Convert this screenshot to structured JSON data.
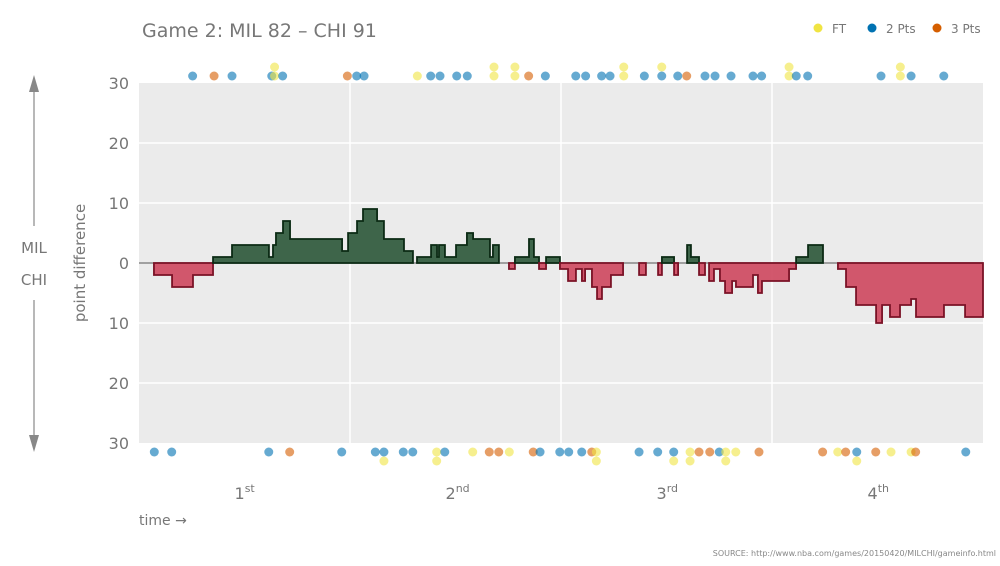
{
  "chart_data": {
    "type": "area",
    "title": "Game 2: MIL 82  –  CHI 91",
    "ylabel": "point difference",
    "xlabel": "time →",
    "team_up": "MIL",
    "team_down": "CHI",
    "source": "SOURCE: http://www.nba.com/games/20150420/MILCHI/gameinfo.html",
    "ylim": [
      -30,
      30
    ],
    "xlim_minutes": [
      0,
      48
    ],
    "y_ticks": [
      {
        "v": 30,
        "label": "30"
      },
      {
        "v": 20,
        "label": "20"
      },
      {
        "v": 10,
        "label": "10"
      },
      {
        "v": 0,
        "label": "0"
      },
      {
        "v": -10,
        "label": "10"
      },
      {
        "v": -20,
        "label": "20"
      },
      {
        "v": -30,
        "label": "30"
      }
    ],
    "quarters": [
      {
        "num": "1",
        "sup": "st"
      },
      {
        "num": "2",
        "sup": "nd"
      },
      {
        "num": "3",
        "sup": "rd"
      },
      {
        "num": "4",
        "sup": "th"
      }
    ],
    "legend": [
      {
        "label": "FT",
        "type": "FT",
        "color": "#f0e442"
      },
      {
        "label": "2 Pts",
        "type": "2",
        "color": "#0072b2"
      },
      {
        "label": "3 Pts",
        "type": "3",
        "color": "#d55e00"
      }
    ],
    "colors": {
      "lead_fill": "#3a6246",
      "lead_stroke": "#0b2a14",
      "trail_fill": "#d04f65",
      "trail_stroke": "#7a1226",
      "panel": "#ebebeb"
    },
    "margin_steps": [
      [
        0,
        0
      ],
      [
        0.85,
        -2
      ],
      [
        1.88,
        -4
      ],
      [
        3.07,
        -2
      ],
      [
        4.21,
        1
      ],
      [
        5.29,
        3
      ],
      [
        7.39,
        1
      ],
      [
        7.62,
        3
      ],
      [
        7.79,
        5
      ],
      [
        8.19,
        7
      ],
      [
        8.59,
        4
      ],
      [
        11.55,
        2
      ],
      [
        11.89,
        5
      ],
      [
        12.4,
        7
      ],
      [
        12.74,
        9
      ],
      [
        13.54,
        7
      ],
      [
        13.93,
        4
      ],
      [
        15.07,
        2
      ],
      [
        15.58,
        0
      ],
      [
        15.81,
        1
      ],
      [
        16.61,
        3
      ],
      [
        16.95,
        1
      ],
      [
        17.06,
        3
      ],
      [
        17.4,
        1
      ],
      [
        18.03,
        3
      ],
      [
        18.65,
        5
      ],
      [
        19.0,
        4
      ],
      [
        19.96,
        1
      ],
      [
        20.13,
        3
      ],
      [
        20.47,
        0
      ],
      [
        21.04,
        -1
      ],
      [
        21.38,
        1
      ],
      [
        22.18,
        4
      ],
      [
        22.46,
        1
      ],
      [
        22.75,
        -1
      ],
      [
        23.15,
        1
      ],
      [
        23.94,
        -1
      ],
      [
        24.4,
        -3
      ],
      [
        24.85,
        -1
      ],
      [
        25.19,
        -3
      ],
      [
        25.37,
        -1
      ],
      [
        25.76,
        -4
      ],
      [
        26.05,
        -6
      ],
      [
        26.33,
        -4
      ],
      [
        26.84,
        -2
      ],
      [
        27.53,
        0
      ],
      [
        28.44,
        -2
      ],
      [
        28.83,
        0
      ],
      [
        29.52,
        -2
      ],
      [
        29.74,
        1
      ],
      [
        30.43,
        -2
      ],
      [
        30.66,
        0
      ],
      [
        31.17,
        3
      ],
      [
        31.39,
        1
      ],
      [
        31.85,
        -2
      ],
      [
        32.19,
        0
      ],
      [
        32.42,
        -3
      ],
      [
        32.7,
        -1
      ],
      [
        33.04,
        -3
      ],
      [
        33.33,
        -5
      ],
      [
        33.73,
        -3
      ],
      [
        33.95,
        -4
      ],
      [
        34.92,
        -2
      ],
      [
        35.2,
        -5
      ],
      [
        35.43,
        -3
      ],
      [
        36.97,
        -1
      ],
      [
        37.37,
        1
      ],
      [
        38.05,
        3
      ],
      [
        38.9,
        0
      ],
      [
        39.75,
        -1
      ],
      [
        40.21,
        -4
      ],
      [
        40.78,
        -7
      ],
      [
        41.92,
        -10
      ],
      [
        42.26,
        -7
      ],
      [
        42.71,
        -9
      ],
      [
        43.28,
        -7
      ],
      [
        43.91,
        -6
      ],
      [
        44.19,
        -9
      ],
      [
        45.78,
        -7
      ],
      [
        46.98,
        -9
      ],
      [
        48,
        -9
      ]
    ],
    "scoring_mil": [
      [
        3.05,
        "2"
      ],
      [
        4.27,
        "3"
      ],
      [
        5.29,
        "2"
      ],
      [
        7.55,
        "2"
      ],
      [
        7.71,
        "FT"
      ],
      [
        7.71,
        "FT"
      ],
      [
        8.17,
        "2"
      ],
      [
        11.85,
        "3"
      ],
      [
        12.38,
        "2"
      ],
      [
        12.8,
        "2"
      ],
      [
        15.83,
        "FT"
      ],
      [
        16.59,
        "2"
      ],
      [
        17.12,
        "2"
      ],
      [
        18.07,
        "2"
      ],
      [
        18.67,
        "2"
      ],
      [
        20.19,
        "FT"
      ],
      [
        20.19,
        "FT"
      ],
      [
        21.38,
        "FT"
      ],
      [
        21.38,
        "FT"
      ],
      [
        22.16,
        "3"
      ],
      [
        23.11,
        "2"
      ],
      [
        24.84,
        "2"
      ],
      [
        25.4,
        "2"
      ],
      [
        26.31,
        "2"
      ],
      [
        26.79,
        "2"
      ],
      [
        27.57,
        "FT"
      ],
      [
        27.57,
        "FT"
      ],
      [
        28.74,
        "2"
      ],
      [
        29.73,
        "2"
      ],
      [
        29.73,
        "FT"
      ],
      [
        30.64,
        "2"
      ],
      [
        31.15,
        "3"
      ],
      [
        32.19,
        "2"
      ],
      [
        32.76,
        "2"
      ],
      [
        33.67,
        "2"
      ],
      [
        34.92,
        "2"
      ],
      [
        35.41,
        "2"
      ],
      [
        36.97,
        "FT"
      ],
      [
        36.97,
        "FT"
      ],
      [
        37.38,
        "2"
      ],
      [
        38.03,
        "2"
      ],
      [
        42.2,
        "2"
      ],
      [
        43.3,
        "FT"
      ],
      [
        43.3,
        "FT"
      ],
      [
        43.91,
        "2"
      ],
      [
        45.77,
        "2"
      ]
    ],
    "scoring_chi": [
      [
        0.87,
        "2"
      ],
      [
        1.86,
        "2"
      ],
      [
        7.38,
        "2"
      ],
      [
        8.57,
        "3"
      ],
      [
        11.53,
        "2"
      ],
      [
        13.44,
        "2"
      ],
      [
        13.93,
        "2"
      ],
      [
        13.93,
        "FT"
      ],
      [
        15.03,
        "2"
      ],
      [
        15.57,
        "2"
      ],
      [
        16.93,
        "FT"
      ],
      [
        16.93,
        "FT"
      ],
      [
        17.39,
        "2"
      ],
      [
        18.98,
        "FT"
      ],
      [
        19.92,
        "3"
      ],
      [
        20.46,
        "3"
      ],
      [
        21.06,
        "FT"
      ],
      [
        22.42,
        "3"
      ],
      [
        22.81,
        "2"
      ],
      [
        23.93,
        "2"
      ],
      [
        24.44,
        "2"
      ],
      [
        25.18,
        "2"
      ],
      [
        25.75,
        "3"
      ],
      [
        26.01,
        "FT"
      ],
      [
        26.01,
        "FT"
      ],
      [
        28.44,
        "2"
      ],
      [
        29.5,
        "2"
      ],
      [
        30.41,
        "2"
      ],
      [
        30.41,
        "FT"
      ],
      [
        31.34,
        "FT"
      ],
      [
        31.34,
        "FT"
      ],
      [
        31.85,
        "3"
      ],
      [
        32.46,
        "3"
      ],
      [
        33.0,
        "2"
      ],
      [
        33.37,
        "FT"
      ],
      [
        33.37,
        "FT"
      ],
      [
        33.94,
        "FT"
      ],
      [
        35.26,
        "3"
      ],
      [
        38.88,
        "3"
      ],
      [
        39.74,
        "FT"
      ],
      [
        40.19,
        "3"
      ],
      [
        40.82,
        "2"
      ],
      [
        40.82,
        "FT"
      ],
      [
        41.9,
        "3"
      ],
      [
        42.77,
        "FT"
      ],
      [
        43.91,
        "FT"
      ],
      [
        44.17,
        "3"
      ],
      [
        47.02,
        "2"
      ]
    ]
  }
}
